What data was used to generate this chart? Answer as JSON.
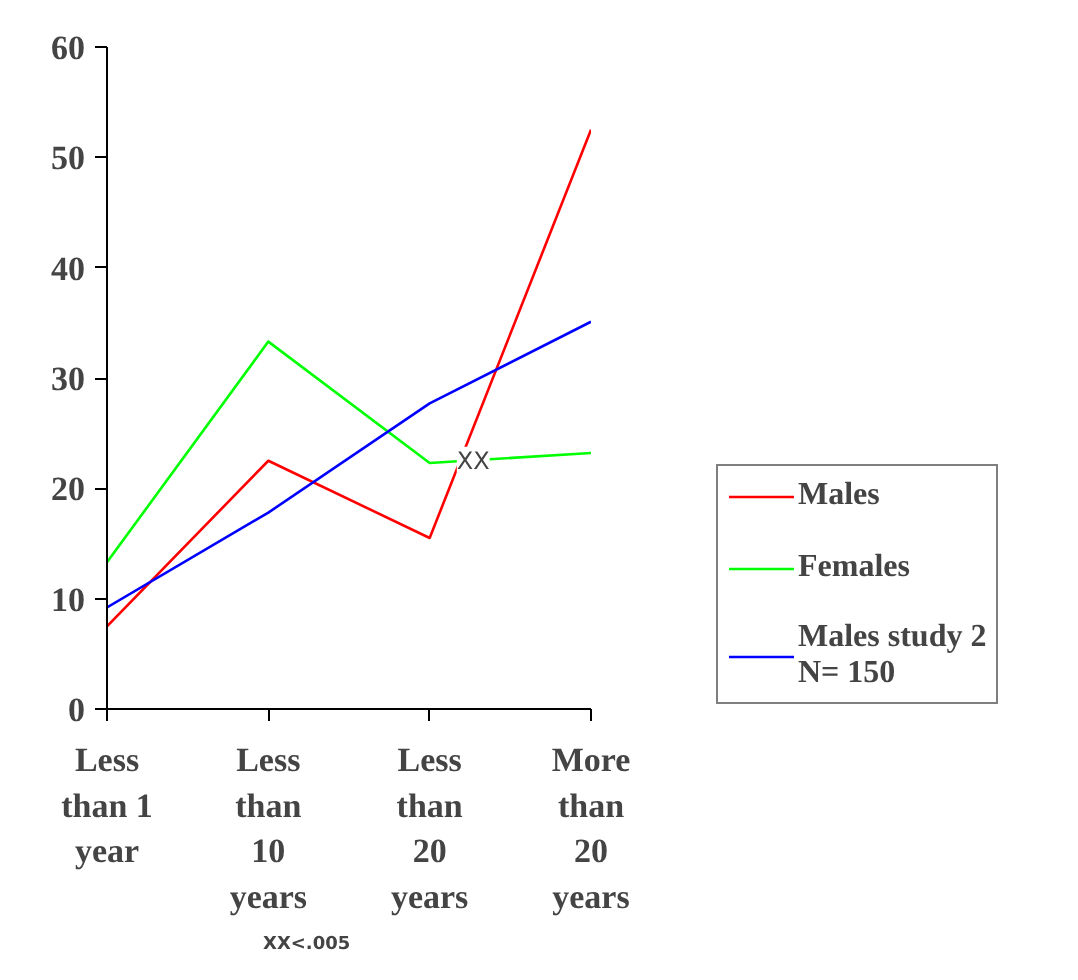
{
  "chart_data": {
    "type": "line",
    "categories": [
      "Less than 1 year",
      "Less than 10 years",
      "Less than 20 years",
      "More than 20 years"
    ],
    "series": [
      {
        "name": "Males",
        "color": "#ff0000",
        "values": [
          7.5,
          22.5,
          15.5,
          52.5
        ]
      },
      {
        "name": "Females",
        "color": "#00ff00",
        "values": [
          13.3,
          33.3,
          22.3,
          23.2
        ]
      },
      {
        "name": "Males study 2\nN= 150",
        "color": "#0000ff",
        "values": [
          9.2,
          17.8,
          27.7,
          35.1
        ]
      }
    ],
    "ylim": [
      0,
      60
    ],
    "yticks": [
      0,
      10,
      20,
      30,
      40,
      50,
      60
    ],
    "annotations": [
      "XX",
      "XX<.005"
    ],
    "grid": false,
    "legend": "right",
    "marker": "none",
    "line_style": "solid"
  }
}
